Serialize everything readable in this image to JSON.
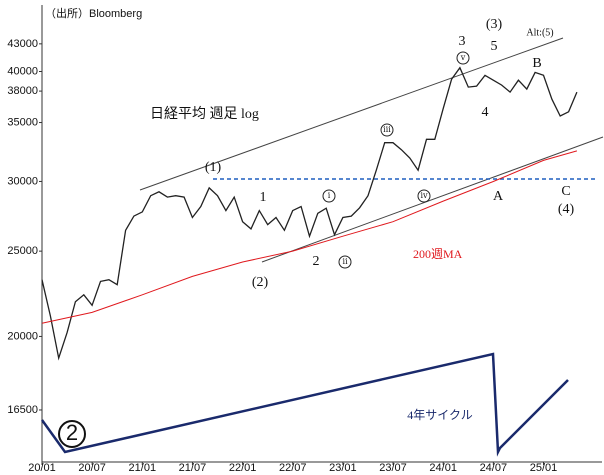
{
  "chart_data": {
    "type": "line",
    "title": "日経平均 週足 log",
    "source": "（出所）Bloomberg",
    "log_scale": true,
    "xlim": [
      0,
      67
    ],
    "xticks": [
      {
        "value": 0,
        "label": "20/01"
      },
      {
        "value": 6,
        "label": "20/07"
      },
      {
        "value": 12,
        "label": "21/01"
      },
      {
        "value": 18,
        "label": "21/07"
      },
      {
        "value": 24,
        "label": "22/01"
      },
      {
        "value": 30,
        "label": "22/07"
      },
      {
        "value": 36,
        "label": "23/01"
      },
      {
        "value": 42,
        "label": "23/07"
      },
      {
        "value": 48,
        "label": "24/01"
      },
      {
        "value": 54,
        "label": "24/07"
      },
      {
        "value": 60,
        "label": "25/01"
      }
    ],
    "ylim": [
      14400,
      47600
    ],
    "yticks": [
      16500,
      20000,
      25000,
      30000,
      35000,
      38000,
      40000,
      43000
    ],
    "series": [
      {
        "color": "#222222",
        "x": [
          0,
          1,
          2,
          3,
          4,
          5,
          6,
          7,
          8,
          9,
          10,
          11,
          12,
          13,
          14,
          15,
          16,
          17,
          18,
          19,
          20,
          21,
          22,
          23,
          24,
          25,
          26,
          27,
          28,
          29,
          30,
          31,
          32,
          33,
          34,
          35,
          36,
          37,
          38,
          39,
          40,
          41,
          42,
          43,
          44,
          45,
          46,
          47,
          48,
          49,
          50,
          51,
          52,
          53,
          54,
          55,
          56,
          57,
          58,
          59,
          60,
          61,
          62,
          63,
          64
        ],
        "values": [
          23200,
          21100,
          18900,
          20200,
          21900,
          22300,
          21700,
          23100,
          23200,
          22900,
          26400,
          27400,
          27700,
          28900,
          29200,
          28800,
          28900,
          28800,
          27300,
          28100,
          29500,
          28900,
          27800,
          28800,
          27000,
          26500,
          27800,
          26800,
          27300,
          26400,
          27800,
          28100,
          26000,
          27600,
          27970,
          26100,
          27300,
          27400,
          28000,
          28900,
          30900,
          33200,
          33200,
          32600,
          31900,
          30900,
          33500,
          33500,
          36300,
          39200,
          40400,
          38400,
          38500,
          39600,
          39100,
          38600,
          37900,
          39100,
          38200,
          39900,
          39600,
          37200,
          35600,
          36000,
          37900
        ]
      },
      {
        "name": "200週MA",
        "color": "#e0191e",
        "x": [
          0,
          6,
          12,
          18,
          24,
          30,
          36,
          42,
          48,
          54,
          60,
          64
        ],
        "values": [
          20700,
          21300,
          22300,
          23400,
          24300,
          25000,
          26000,
          27000,
          28500,
          30000,
          31700,
          32500
        ]
      }
    ],
    "annotations": [
      "(1)",
      "1",
      "ⅰ",
      "2",
      "(2)",
      "ⅱ",
      "ⅲ",
      "ⅳ",
      "3",
      "ⅴ",
      "(3)",
      "5",
      "Alt:(5)",
      "4",
      "B",
      "A",
      "C",
      "(4)",
      "4年サイクル",
      "2"
    ]
  }
}
